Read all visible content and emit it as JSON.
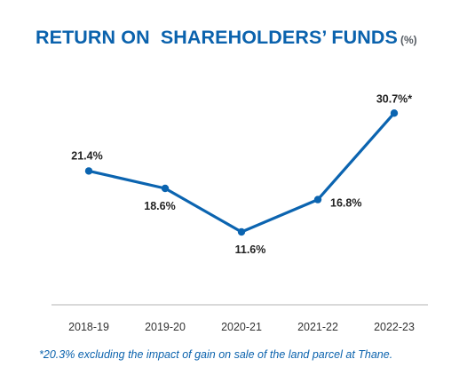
{
  "header": {
    "title": "RETURN ON  SHAREHOLDERS’ FUNDS",
    "unit": "(%)"
  },
  "footnote": "*20.3% excluding the impact of gain on sale of the land parcel at Thane.",
  "colors": {
    "line": "#0b64b0",
    "title": "#0a62ad",
    "label": "#222222",
    "axis": "#9a9a9a"
  },
  "chart_data": {
    "type": "line",
    "title": "RETURN ON  SHAREHOLDERS’ FUNDS",
    "unit": "(%)",
    "categories": [
      "2018-19",
      "2019-20",
      "2020-21",
      "2021-22",
      "2022-23"
    ],
    "series": [
      {
        "values": [
          21.4,
          18.6,
          11.6,
          16.8,
          30.7
        ],
        "labels": [
          "21.4%",
          "18.6%",
          "11.6%",
          "16.8%",
          "30.7%*"
        ]
      }
    ],
    "xlabel": "",
    "ylabel": "",
    "grid": false,
    "legend": "none"
  }
}
